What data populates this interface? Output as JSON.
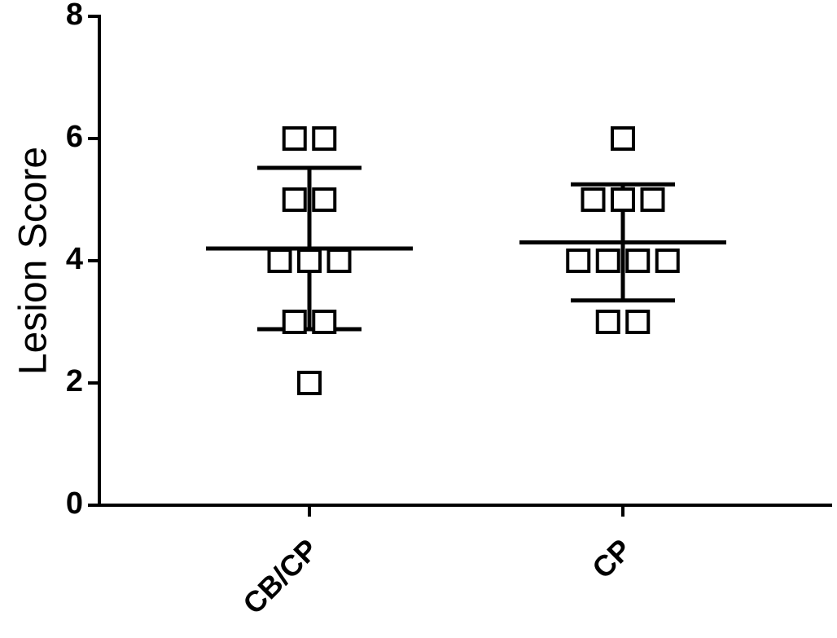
{
  "chart_data": {
    "type": "dot",
    "ylabel": "Lesion Score",
    "categories": [
      "CB/CP",
      "CP"
    ],
    "points": [
      [
        6,
        6,
        5,
        5,
        4,
        4,
        4,
        3,
        3,
        2
      ],
      [
        6,
        5,
        5,
        5,
        4,
        4,
        4,
        4,
        3,
        3
      ]
    ],
    "mean": [
      4.2,
      4.3
    ],
    "sd": [
      1.32,
      0.95
    ],
    "color": "#000000",
    "ylim": [
      0,
      8
    ],
    "yticks": [
      0,
      2,
      4,
      6,
      8
    ]
  }
}
